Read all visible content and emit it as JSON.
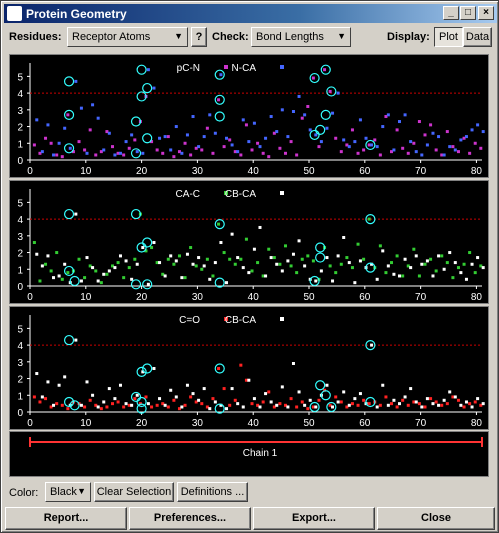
{
  "window": {
    "title": "Protein Geometry",
    "colors": {
      "titlebar": "#0a246a",
      "axis": "#ffffff",
      "threshold": "#cc0000",
      "chain_bar": "#ff3333",
      "highlight": "#33ffff"
    }
  },
  "controls": {
    "residues_label": "Residues:",
    "residues_value": "Receptor Atoms",
    "help_label": "?",
    "check_label": "Check:",
    "check_value": "Bond Lengths",
    "display_label": "Display:",
    "display_plot": "Plot",
    "display_data": "Data"
  },
  "x_ticks": [
    "0",
    "10",
    "20",
    "30",
    "40",
    "50",
    "60",
    "70",
    "80"
  ],
  "y_ticks": [
    "0",
    "1",
    "2",
    "3",
    "4",
    "5"
  ],
  "chart_data": [
    {
      "type": "scatter",
      "title": "pC-N / N-CA",
      "series": [
        {
          "name": "pC-N",
          "color": "#cc33cc",
          "values": [
            0.9,
            0.4,
            1.3,
            1.0,
            0.3,
            0.2,
            2.7,
            0.5,
            1.1,
            0.6,
            1.8,
            0.3,
            0.5,
            1.7,
            0.8,
            0.4,
            0.3,
            0.7,
            1.2,
            2.3,
            3.8,
            1.1,
            0.6,
            0.4,
            1.4,
            0.2,
            0.5,
            1.0,
            0.3,
            0.7,
            0.6,
            1.9,
            0.4,
            3.6,
            0.8,
            1.2,
            0.5,
            0.3,
            2.1,
            0.6,
            1.0,
            0.4,
            0.2,
            1.6,
            0.7,
            0.4,
            1.1,
            0.3,
            2.5,
            3.2,
            4.9,
            0.8,
            5.4,
            4.1,
            1.3,
            0.5,
            0.9,
            1.8,
            0.4,
            0.6,
            0.9,
            1.2,
            0.3,
            2.6,
            0.5,
            1.8,
            0.7,
            0.4,
            1.0,
            2.3,
            1.5,
            2.1,
            0.6,
            0.3,
            1.7,
            0.8,
            0.5,
            1.3,
            0.4,
            1.0,
            0.7
          ]
        },
        {
          "name": "N-CA",
          "color": "#4466ff",
          "values": [
            2.4,
            0.5,
            2.1,
            0.3,
            1.0,
            1.9,
            0.7,
            4.7,
            3.1,
            0.4,
            3.3,
            2.5,
            0.6,
            1.6,
            0.3,
            0.4,
            1.1,
            1.5,
            0.5,
            0.4,
            5.4,
            4.3,
            1.3,
            1.4,
            0.6,
            2.0,
            0.4,
            1.5,
            2.6,
            0.8,
            1.4,
            2.7,
            1.6,
            5.1,
            1.3,
            0.9,
            0.5,
            2.4,
            1.1,
            2.2,
            0.8,
            1.3,
            2.6,
            1.7,
            3.0,
            1.4,
            2.9,
            3.8,
            2.7,
            1.8,
            1.5,
            1.1,
            1.9,
            2.8,
            4.0,
            1.2,
            0.8,
            1.1,
            2.4,
            1.3,
            0.9,
            0.8,
            2.0,
            2.7,
            0.6,
            2.3,
            2.7,
            1.1,
            0.5,
            0.3,
            0.9,
            1.6,
            1.4,
            0.3,
            0.8,
            0.6,
            1.2,
            1.4,
            1.8,
            2.1,
            1.7
          ]
        }
      ],
      "xlim": [
        0,
        81
      ],
      "ylim": [
        0,
        5.8
      ],
      "threshold": 4
    },
    {
      "type": "scatter",
      "title": "CA-C / CB-CA",
      "series": [
        {
          "name": "CA-C",
          "color": "#33cc33",
          "values": [
            2.6,
            0.3,
            1.3,
            0.9,
            2.0,
            0.4,
            0.8,
            0.9,
            1.6,
            0.5,
            1.2,
            0.9,
            0.2,
            0.7,
            1.2,
            1.4,
            0.5,
            1.1,
            1.6,
            4.3,
            2.1,
            2.3,
            1.4,
            0.7,
            1.6,
            1.3,
            1.8,
            0.5,
            2.3,
            1.2,
            1.0,
            1.6,
            0.6,
            3.7,
            2.0,
            1.6,
            1.3,
            1.6,
            2.8,
            0.9,
            1.4,
            0.6,
            2.2,
            1.7,
            1.3,
            2.4,
            1.2,
            0.8,
            1.6,
            1.8,
            1.5,
            0.4,
            2.3,
            1.2,
            0.8,
            1.3,
            1.7,
            1.1,
            2.5,
            1.6,
            4.0,
            1.1,
            2.4,
            0.8,
            1.4,
            1.8,
            0.6,
            1.2,
            2.2,
            0.6,
            1.3,
            1.6,
            0.9,
            1.8,
            1.4,
            0.5,
            1.1,
            1.3,
            2.0,
            0.8,
            1.2
          ]
        },
        {
          "name": "CB-CA",
          "color": "#ffffff",
          "values": [
            1.9,
            1.2,
            1.8,
            0.5,
            0.6,
            1.3,
            0.2,
            4.3,
            0.3,
            1.7,
            1.1,
            0.3,
            0.7,
            0.9,
            1.1,
            1.8,
            1.5,
            0.4,
            1.3,
            2.3,
            0.1,
            2.6,
            1.4,
            0.6,
            1.8,
            1.5,
            0.5,
            1.9,
            1.3,
            1.7,
            1.2,
            0.4,
            1.4,
            2.6,
            0.2,
            3.1,
            1.7,
            1.1,
            0.8,
            2.2,
            3.5,
            0.6,
            1.7,
            1.3,
            0.9,
            1.5,
            1.9,
            2.7,
            1.2,
            0.4,
            0.3,
            0.9,
            1.7,
            0.3,
            1.8,
            2.9,
            1.4,
            0.2,
            1.5,
            1.1,
            1.3,
            0.4,
            2.1,
            1.2,
            0.7,
            0.6,
            1.6,
            1.1,
            1.8,
            1.3,
            1.5,
            0.6,
            1.8,
            1.0,
            2.0,
            1.4,
            0.8,
            0.4,
            1.3,
            1.7,
            1.1
          ]
        }
      ],
      "xlim": [
        0,
        81
      ],
      "ylim": [
        0,
        5.8
      ],
      "threshold": 4
    },
    {
      "type": "scatter",
      "title": "C=O / CB-CA",
      "series": [
        {
          "name": "C=O",
          "color": "#ff2222",
          "values": [
            0.9,
            0.6,
            0.8,
            0.3,
            0.5,
            0.4,
            0.2,
            0.6,
            0.5,
            0.3,
            0.7,
            0.4,
            0.2,
            0.3,
            0.5,
            0.6,
            0.3,
            0.4,
            0.8,
            0.5,
            0.9,
            0.3,
            0.4,
            0.5,
            0.3,
            0.7,
            0.2,
            0.4,
            0.9,
            0.6,
            0.5,
            0.3,
            0.8,
            2.6,
            1.4,
            0.4,
            0.7,
            2.8,
            1.9,
            0.5,
            0.4,
            0.6,
            1.2,
            0.3,
            0.5,
            0.4,
            0.8,
            0.3,
            0.6,
            0.2,
            0.3,
            0.7,
            1.3,
            0.4,
            0.9,
            0.6,
            0.3,
            0.5,
            0.4,
            0.7,
            0.5,
            0.6,
            0.4,
            0.9,
            0.5,
            0.3,
            0.7,
            0.4,
            0.6,
            0.5,
            0.3,
            0.8,
            0.6,
            0.4,
            0.5,
            0.9,
            0.7,
            0.3,
            0.5,
            0.6,
            0.4
          ]
        },
        {
          "name": "CB-CA",
          "color": "#ffffff",
          "values": [
            2.3,
            0.9,
            1.8,
            0.4,
            1.6,
            2.1,
            0.4,
            4.3,
            0.4,
            1.8,
            1.0,
            0.3,
            0.6,
            1.4,
            0.8,
            1.6,
            0.5,
            0.4,
            1.0,
            2.4,
            0.5,
            2.6,
            0.8,
            0.4,
            1.3,
            0.9,
            0.3,
            1.6,
            1.1,
            0.7,
            1.4,
            0.2,
            0.6,
            0.4,
            0.2,
            1.4,
            0.5,
            0.3,
            1.9,
            0.8,
            0.3,
            1.1,
            0.6,
            0.4,
            1.5,
            0.3,
            2.9,
            1.2,
            0.4,
            0.7,
            0.3,
            1.0,
            1.6,
            0.3,
            0.6,
            1.2,
            0.4,
            0.8,
            1.1,
            0.5,
            4.0,
            0.3,
            1.6,
            0.4,
            0.7,
            0.5,
            0.9,
            1.4,
            0.6,
            0.3,
            0.8,
            0.5,
            0.4,
            0.7,
            1.2,
            0.9,
            0.4,
            0.6,
            0.3,
            0.8,
            0.5
          ]
        }
      ],
      "xlim": [
        0,
        81
      ],
      "ylim": [
        0,
        5.8
      ],
      "threshold": 4
    }
  ],
  "highlights": [
    [
      [
        7,
        4.7
      ],
      [
        7,
        2.7
      ],
      [
        7,
        0.7
      ],
      [
        19,
        2.3
      ],
      [
        19,
        0.4
      ],
      [
        20,
        5.4
      ],
      [
        20,
        3.8
      ],
      [
        21,
        4.3
      ],
      [
        21,
        1.3
      ],
      [
        34,
        5.1
      ],
      [
        34,
        3.6
      ],
      [
        34,
        2.6
      ],
      [
        51,
        4.9
      ],
      [
        51,
        1.5
      ],
      [
        52,
        1.8
      ],
      [
        53,
        5.4
      ],
      [
        54,
        4.1
      ],
      [
        53,
        2.7
      ],
      [
        61,
        0.9
      ]
    ],
    [
      [
        7,
        4.3
      ],
      [
        7,
        0.9
      ],
      [
        8,
        0.3
      ],
      [
        19,
        4.3
      ],
      [
        19,
        0.1
      ],
      [
        20,
        2.3
      ],
      [
        21,
        2.6
      ],
      [
        21,
        0.1
      ],
      [
        34,
        3.7
      ],
      [
        34,
        0.2
      ],
      [
        51,
        0.3
      ],
      [
        52,
        2.3
      ],
      [
        52,
        1.7
      ],
      [
        61,
        4.0
      ],
      [
        61,
        1.1
      ]
    ],
    [
      [
        7,
        4.3
      ],
      [
        7,
        0.6
      ],
      [
        8,
        0.4
      ],
      [
        19,
        0.9
      ],
      [
        20,
        0.6
      ],
      [
        20,
        2.4
      ],
      [
        21,
        2.6
      ],
      [
        20,
        0.2
      ],
      [
        34,
        2.6
      ],
      [
        34,
        0.2
      ],
      [
        51,
        0.3
      ],
      [
        52,
        1.6
      ],
      [
        53,
        1.0
      ],
      [
        54,
        0.3
      ],
      [
        61,
        4.0
      ],
      [
        61,
        0.6
      ]
    ]
  ],
  "chain": {
    "label": "Chain 1"
  },
  "bottom": {
    "color_label": "Color:",
    "color_value": "Black",
    "clear_selection": "Clear Selection",
    "definitions": "Definitions ..."
  },
  "footer": {
    "report": "Report...",
    "preferences": "Preferences...",
    "export": "Export...",
    "close": "Close"
  }
}
